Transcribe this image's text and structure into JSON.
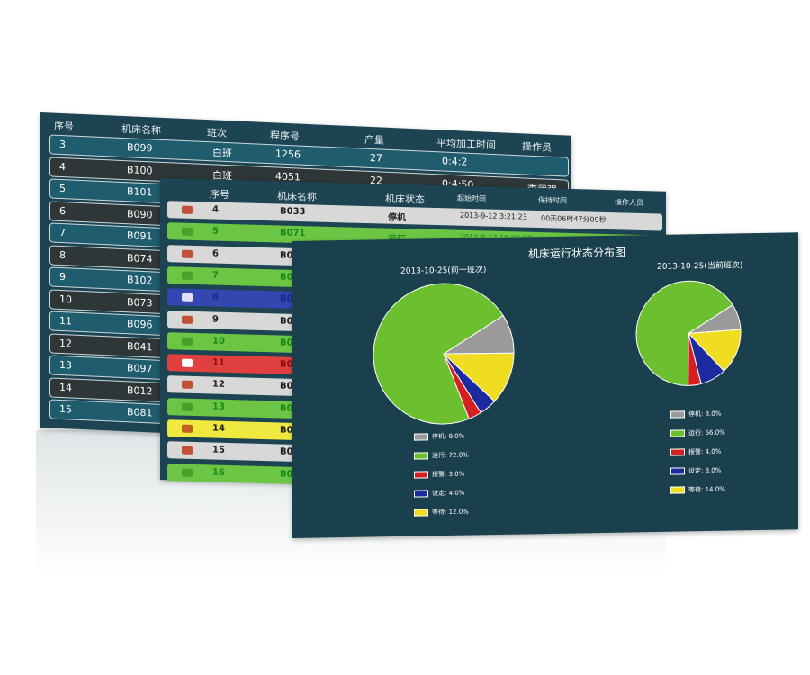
{
  "back_table": {
    "headers": [
      "序号",
      "机床名称",
      "班次",
      "程序号",
      "产量",
      "平均加工时间",
      "操作员"
    ],
    "rows": [
      {
        "no": "3",
        "name": "B099",
        "shift": "白班",
        "prog": "1256",
        "qty": "27",
        "avg": "0:4:2",
        "op": ""
      },
      {
        "no": "4",
        "name": "B100",
        "shift": "白班",
        "prog": "4051",
        "qty": "22",
        "avg": "0:4:50",
        "op": "李武强"
      },
      {
        "no": "5",
        "name": "B101"
      },
      {
        "no": "6",
        "name": "B090"
      },
      {
        "no": "7",
        "name": "B091"
      },
      {
        "no": "8",
        "name": "B074"
      },
      {
        "no": "9",
        "name": "B102"
      },
      {
        "no": "10",
        "name": "B073"
      },
      {
        "no": "11",
        "name": "B096"
      },
      {
        "no": "12",
        "name": "B041"
      },
      {
        "no": "13",
        "name": "B097"
      },
      {
        "no": "14",
        "name": "B012"
      },
      {
        "no": "15",
        "name": "B081"
      }
    ]
  },
  "mid_table": {
    "headers": [
      "序号",
      "机床名称",
      "机床状态",
      "起始时间",
      "保持时间",
      "操作人员"
    ],
    "rows": [
      {
        "no": "4",
        "name": "B033",
        "status": "停机",
        "start": "2013-9-12 3:21:23",
        "dur": "00天06时47分09秒",
        "color": "#d8d8d8",
        "text": "#222",
        "icon": "stop-icon"
      },
      {
        "no": "5",
        "name": "B071",
        "status": "运行",
        "start": "2013-9-12 10:08:07",
        "dur": "00天00时00分24秒",
        "color": "#6cc644",
        "text": "#1a8a1a",
        "icon": "run-icon"
      },
      {
        "no": "6",
        "name": "B0",
        "color": "#d8d8d8",
        "text": "#222",
        "icon": "stop-icon"
      },
      {
        "no": "7",
        "name": "B0",
        "color": "#6cc644",
        "text": "#1a8a1a",
        "icon": "run-icon"
      },
      {
        "no": "8",
        "name": "B0",
        "color": "#3446b0",
        "text": "#1b2a90",
        "icon": "setup-icon"
      },
      {
        "no": "9",
        "name": "B0",
        "color": "#d8d8d8",
        "text": "#222",
        "icon": "stop-icon"
      },
      {
        "no": "10",
        "name": "B0",
        "color": "#6cc644",
        "text": "#1a8a1a",
        "icon": "run-icon"
      },
      {
        "no": "11",
        "name": "B0",
        "color": "#e04040",
        "text": "#8a1010",
        "icon": "alarm-icon"
      },
      {
        "no": "12",
        "name": "B0",
        "color": "#d8d8d8",
        "text": "#222",
        "icon": "stop-icon"
      },
      {
        "no": "13",
        "name": "B0",
        "color": "#6cc644",
        "text": "#1a8a1a",
        "icon": "run-icon"
      },
      {
        "no": "14",
        "name": "B0",
        "color": "#f0ea40",
        "text": "#222",
        "icon": "wait-icon"
      },
      {
        "no": "15",
        "name": "B0",
        "color": "#d8d8d8",
        "text": "#222",
        "icon": "stop-icon"
      },
      {
        "no": "16",
        "name": "B0",
        "color": "#6cc644",
        "text": "#1a8a1a",
        "icon": "run-icon"
      }
    ]
  },
  "chart_data": [
    {
      "type": "pie",
      "title": "2013-10-25(前一班次)",
      "categories": [
        "停机",
        "运行",
        "报警",
        "设定",
        "等待"
      ],
      "values": [
        9.0,
        72.0,
        3.0,
        4.0,
        12.0
      ],
      "labels": [
        "9.0%",
        "72.0%",
        "3.0%",
        "4.0%",
        "12.0%"
      ],
      "colors": [
        "#9a9a9a",
        "#6cbf2e",
        "#d42020",
        "#1c2aa0",
        "#f0dc20"
      ],
      "legend": "bottom"
    },
    {
      "type": "pie",
      "title": "2013-10-25(当前班次)",
      "categories": [
        "停机",
        "运行",
        "报警",
        "设定",
        "等待"
      ],
      "values": [
        8.0,
        66.0,
        4.0,
        8.0,
        14.0
      ],
      "labels": [
        "8.0%",
        "66.0%",
        "4.0%",
        "8.0%",
        "14.0%"
      ],
      "colors": [
        "#9a9a9a",
        "#6cbf2e",
        "#d42020",
        "#1c2aa0",
        "#f0dc20"
      ],
      "legend": "bottom"
    }
  ],
  "front": {
    "title": "机床运行状态分布图"
  }
}
